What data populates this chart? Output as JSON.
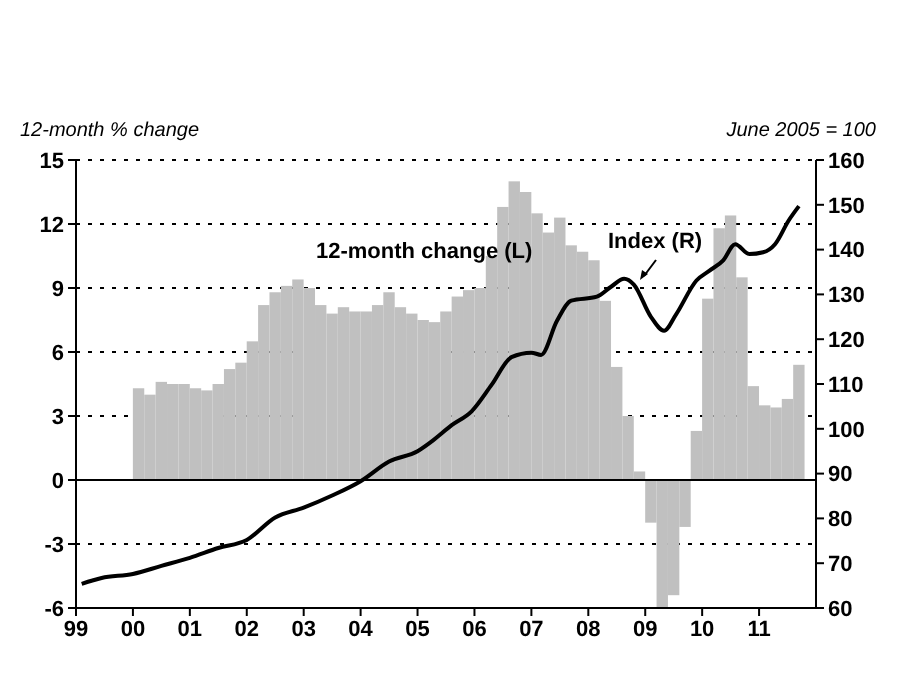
{
  "chart_data": {
    "type": "bar",
    "ylabel": "12-month % change",
    "y2label": "June 2005 = 100",
    "annotations": [
      "12-month change (L)",
      "Index (R)"
    ],
    "series": [
      {
        "color": "#c0c0c0",
        "x": [
          2000.1,
          2000.3,
          2000.5,
          2000.7,
          2000.9,
          2001.1,
          2001.3,
          2001.5,
          2001.7,
          2001.9,
          2002.1,
          2002.3,
          2002.5,
          2002.7,
          2002.9,
          2003.1,
          2003.3,
          2003.5,
          2003.7,
          2003.9,
          2004.1,
          2004.3,
          2004.5,
          2004.7,
          2004.9,
          2005.1,
          2005.3,
          2005.5,
          2005.7,
          2005.9,
          2006.1,
          2006.3,
          2006.5,
          2006.7,
          2006.9,
          2007.1,
          2007.3,
          2007.5,
          2007.7,
          2007.9,
          2008.1,
          2008.3,
          2008.5,
          2008.7,
          2008.9,
          2009.1,
          2009.3,
          2009.5,
          2009.7,
          2009.9,
          2010.1,
          2010.3,
          2010.5,
          2010.7,
          2010.9,
          2011.1,
          2011.3,
          2011.5,
          2011.7
        ],
        "values": [
          4.3,
          4.0,
          4.6,
          4.5,
          4.5,
          4.3,
          4.2,
          4.5,
          5.2,
          5.5,
          6.5,
          8.2,
          8.8,
          9.1,
          9.4,
          9.0,
          8.2,
          7.8,
          8.1,
          7.9,
          7.9,
          8.2,
          8.8,
          8.1,
          7.8,
          7.5,
          7.4,
          7.9,
          8.6,
          8.9,
          9.0,
          10.5,
          12.8,
          14.0,
          13.5,
          12.5,
          11.6,
          12.3,
          11.0,
          10.7,
          10.3,
          8.4,
          5.3,
          3.0,
          0.4,
          -2.0,
          -6.0,
          -5.4,
          -2.2,
          2.3,
          8.5,
          11.8,
          12.4,
          9.5,
          4.4,
          3.5,
          3.4,
          3.8,
          5.4
        ]
      },
      {
        "type": "line",
        "axis": "y2",
        "color": "#000000",
        "x": [
          1999.1,
          1999.45,
          2000.0,
          2000.5,
          2001.0,
          2001.5,
          2002.0,
          2002.5,
          2003.0,
          2003.5,
          2004.0,
          2004.5,
          2005.0,
          2005.25,
          2005.6,
          2005.95,
          2006.3,
          2006.65,
          2007.0,
          2007.17,
          2007.45,
          2007.7,
          2008.15,
          2008.4,
          2008.63,
          2008.8,
          2009.1,
          2009.33,
          2009.54,
          2009.9,
          2010.13,
          2010.37,
          2010.58,
          2010.83,
          2011.07,
          2011.28,
          2011.52,
          2011.7
        ],
        "values": [
          65.4,
          66.7,
          67.6,
          69.4,
          71.2,
          73.4,
          75.2,
          80.2,
          82.4,
          85.1,
          88.3,
          92.7,
          95.0,
          97.2,
          100.8,
          103.9,
          109.8,
          116.0,
          117.0,
          116.5,
          124.1,
          128.6,
          129.5,
          131.7,
          133.5,
          132.2,
          125.0,
          121.9,
          125.5,
          133.1,
          135.3,
          137.6,
          141.2,
          139.0,
          139.4,
          141.2,
          146.5,
          149.7
        ]
      }
    ],
    "xlim": [
      1999,
      2012
    ],
    "xticks": [
      {
        "value": 1999,
        "label": "99"
      },
      {
        "value": 2000,
        "label": "00"
      },
      {
        "value": 2001,
        "label": "01"
      },
      {
        "value": 2002,
        "label": "02"
      },
      {
        "value": 2003,
        "label": "03"
      },
      {
        "value": 2004,
        "label": "04"
      },
      {
        "value": 2005,
        "label": "05"
      },
      {
        "value": 2006,
        "label": "06"
      },
      {
        "value": 2007,
        "label": "07"
      },
      {
        "value": 2008,
        "label": "08"
      },
      {
        "value": 2009,
        "label": "09"
      },
      {
        "value": 2010,
        "label": "10"
      },
      {
        "value": 2011,
        "label": "11"
      }
    ],
    "ylim": [
      -6,
      15
    ],
    "yticks": [
      -6,
      -3,
      0,
      3,
      6,
      9,
      12,
      15
    ],
    "y2lim": [
      60,
      160
    ],
    "y2ticks": [
      60,
      70,
      80,
      90,
      100,
      110,
      120,
      130,
      140,
      150,
      160
    ],
    "grid": "y",
    "legend": false
  }
}
